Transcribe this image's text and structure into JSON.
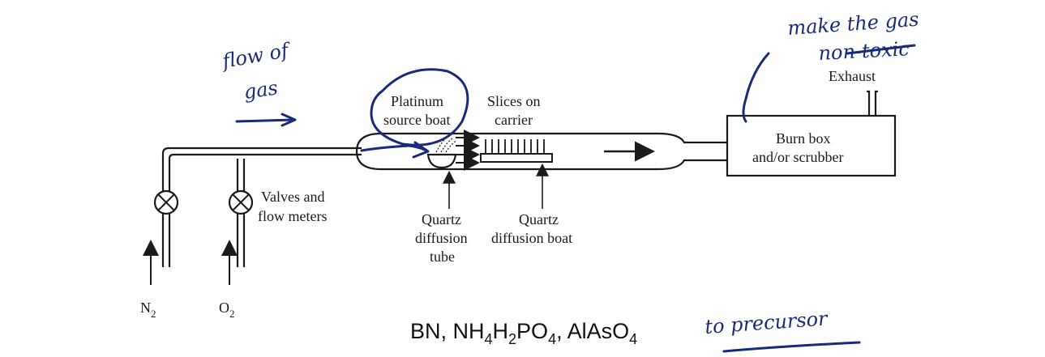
{
  "labels": {
    "platinum_source_boat": [
      "Platinum",
      "source boat"
    ],
    "slices_on_carrier": [
      "Slices on",
      "carrier"
    ],
    "burn_box": [
      "Burn box",
      "and/or scrubber"
    ],
    "exhaust": "Exhaust",
    "valves": [
      "Valves and",
      "flow meters"
    ],
    "quartz_tube": [
      "Quartz",
      "diffusion",
      "tube"
    ],
    "quartz_boat": [
      "Quartz",
      "diffusion boat"
    ],
    "n2": {
      "base": "N",
      "sub": "2"
    },
    "o2": {
      "base": "O",
      "sub": "2"
    }
  },
  "formula": {
    "parts": [
      "BN, NH",
      "4",
      "H",
      "2",
      "PO",
      "4",
      ", AlAsO",
      "4"
    ]
  },
  "handwritten": {
    "flow": [
      "flow of",
      "gas"
    ],
    "make": [
      "make the gas",
      "non-toxic"
    ],
    "precursor": "to precursor"
  },
  "colors": {
    "ink": "#1a2a7a",
    "print": "#1a1a1a"
  }
}
